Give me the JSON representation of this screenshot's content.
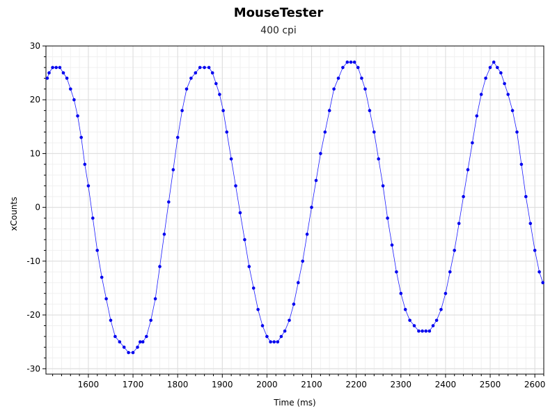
{
  "chart_data": {
    "type": "line",
    "title": "MouseTester",
    "subtitle": "400 cpi",
    "xlabel": "Time (ms)",
    "ylabel": "xCounts",
    "xlim": [
      1505,
      2620
    ],
    "ylim": [
      -31,
      30
    ],
    "x_ticks": [
      1600,
      1700,
      1800,
      1900,
      2000,
      2100,
      2200,
      2300,
      2400,
      2500,
      2600
    ],
    "y_ticks": [
      30,
      20,
      10,
      0,
      -10,
      -20,
      -30
    ],
    "grid": true,
    "legend": "none",
    "line_color": "#1a1aff",
    "marker_color": "#0000ee",
    "series": [
      {
        "x": [
          1508,
          1512,
          1520,
          1528,
          1536,
          1544,
          1552,
          1560,
          1568,
          1576,
          1584,
          1592,
          1600,
          1610,
          1620,
          1630,
          1640,
          1650,
          1660,
          1670,
          1680,
          1690,
          1700,
          1710,
          1716,
          1722,
          1730,
          1740,
          1750,
          1760,
          1770,
          1780,
          1790,
          1800,
          1810,
          1820,
          1830,
          1840,
          1850,
          1860,
          1870,
          1878,
          1886,
          1894,
          1902,
          1910,
          1920,
          1930,
          1940,
          1950,
          1960,
          1970,
          1980,
          1990,
          2000,
          2008,
          2016,
          2024,
          2032,
          2040,
          2050,
          2060,
          2070,
          2080,
          2090,
          2100,
          2110,
          2120,
          2130,
          2140,
          2150,
          2160,
          2170,
          2180,
          2188,
          2196,
          2204,
          2212,
          2220,
          2230,
          2240,
          2250,
          2260,
          2270,
          2280,
          2290,
          2300,
          2310,
          2320,
          2330,
          2340,
          2348,
          2356,
          2364,
          2372,
          2380,
          2390,
          2400,
          2410,
          2420,
          2430,
          2440,
          2450,
          2460,
          2470,
          2480,
          2490,
          2500,
          2508,
          2516,
          2524,
          2532,
          2540,
          2550,
          2560,
          2570,
          2580,
          2590,
          2600,
          2610,
          2618
        ],
        "y": [
          24,
          25,
          26,
          26,
          26,
          25,
          24,
          22,
          20,
          17,
          13,
          8,
          4,
          -2,
          -8,
          -13,
          -17,
          -21,
          -24,
          -25,
          -26,
          -27,
          -27,
          -26,
          -25,
          -25,
          -24,
          -21,
          -17,
          -11,
          -5,
          1,
          7,
          13,
          18,
          22,
          24,
          25,
          26,
          26,
          26,
          25,
          23,
          21,
          18,
          14,
          9,
          4,
          -1,
          -6,
          -11,
          -15,
          -19,
          -22,
          -24,
          -25,
          -25,
          -25,
          -24,
          -23,
          -21,
          -18,
          -14,
          -10,
          -5,
          0,
          5,
          10,
          14,
          18,
          22,
          24,
          26,
          27,
          27,
          27,
          26,
          24,
          22,
          18,
          14,
          9,
          4,
          -2,
          -7,
          -12,
          -16,
          -19,
          -21,
          -22,
          -23,
          -23,
          -23,
          -23,
          -22,
          -21,
          -19,
          -16,
          -12,
          -8,
          -3,
          2,
          7,
          12,
          17,
          21,
          24,
          26,
          27,
          26,
          25,
          23,
          21,
          18,
          14,
          8,
          2,
          -3,
          -8,
          -12,
          -14
        ]
      }
    ]
  }
}
